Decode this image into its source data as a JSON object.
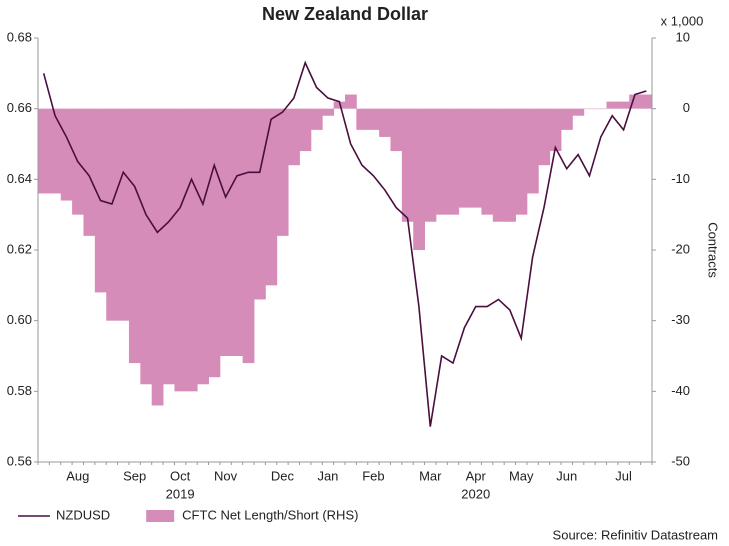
{
  "chart_data": {
    "type": "line_area_dual",
    "title": "New Zealand Dollar",
    "y2_label": "Contracts",
    "y2_unit_label": "x 1,000",
    "source": "Source: Refinitiv Datastream",
    "categories": [
      null,
      null,
      null,
      "Aug",
      null,
      null,
      null,
      null,
      "Sep",
      null,
      null,
      null,
      "Oct",
      null,
      null,
      null,
      "Nov",
      null,
      null,
      null,
      null,
      "Dec",
      null,
      null,
      null,
      "Jan",
      null,
      null,
      null,
      "Feb",
      null,
      null,
      null,
      null,
      "Mar",
      null,
      null,
      null,
      "Apr",
      null,
      null,
      null,
      "May",
      null,
      null,
      null,
      "Jun",
      null,
      null,
      null,
      null,
      "Jul",
      null,
      null
    ],
    "year_labels": [
      {
        "label": "2019",
        "at": "Oct"
      },
      {
        "label": "2020",
        "at": "Apr"
      }
    ],
    "series": [
      {
        "name": "NZDUSD",
        "type": "line",
        "color": "#4a0e3f",
        "values": [
          0.67,
          0.658,
          0.652,
          0.645,
          0.641,
          0.634,
          0.633,
          0.642,
          0.638,
          0.63,
          0.625,
          0.628,
          0.632,
          0.64,
          0.633,
          0.644,
          0.635,
          0.641,
          0.642,
          0.642,
          0.657,
          0.659,
          0.663,
          0.673,
          0.666,
          0.663,
          0.662,
          0.65,
          0.644,
          0.641,
          0.637,
          0.632,
          0.629,
          0.604,
          0.57,
          0.59,
          0.588,
          0.598,
          0.604,
          0.604,
          0.606,
          0.603,
          0.595,
          0.618,
          0.632,
          0.649,
          0.643,
          0.647,
          0.641,
          0.652,
          0.658,
          0.654,
          0.664,
          0.665
        ]
      },
      {
        "name": "CFTC Net Length/Short (RHS)",
        "type": "area",
        "axis": "y2",
        "color": "#d58cb8",
        "values": [
          -12,
          -12,
          -13,
          -15,
          -18,
          -26,
          -30,
          -30,
          -36,
          -39,
          -42,
          -39,
          -40,
          -40,
          -39,
          -38,
          -35,
          -35,
          -36,
          -27,
          -25,
          -18,
          -8,
          -6,
          -3,
          -1,
          1,
          2,
          -3,
          -3,
          -4,
          -6,
          -16,
          -20,
          -16,
          -15,
          -15,
          -14,
          -14,
          -15,
          -16,
          -16,
          -15,
          -12,
          -8,
          -6,
          -3,
          -1,
          0,
          0,
          1,
          1,
          2,
          2
        ]
      }
    ],
    "ylim": [
      0.56,
      0.68
    ],
    "yticks": [
      0.56,
      0.58,
      {
        "value": 0.6,
        "label": "0.60"
      },
      0.62,
      0.64,
      0.66,
      0.68
    ],
    "y2lim": [
      -50,
      10
    ],
    "y2ticks": [
      -50,
      -40,
      -30,
      -20,
      -10,
      0,
      10
    ],
    "grid": false
  }
}
